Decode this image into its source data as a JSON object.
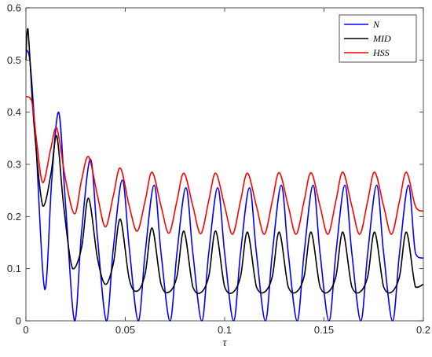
{
  "chart_data": {
    "type": "line",
    "title": "",
    "xlabel": "τ",
    "ylabel": "",
    "xlim": [
      0,
      0.2
    ],
    "ylim": [
      0,
      0.6
    ],
    "xticks": [
      0,
      0.05,
      0.1,
      0.15,
      0.2
    ],
    "xtick_labels": [
      "0",
      "0.05",
      "0.1",
      "0.15",
      "0.2"
    ],
    "yticks": [
      0,
      0.1,
      0.2,
      0.3,
      0.4,
      0.5,
      0.6
    ],
    "ytick_labels": [
      "0",
      "0.1",
      "0.2",
      "0.3",
      "0.4",
      "0.5",
      "0.6"
    ],
    "grid": false,
    "legend_position": "top-right",
    "series": [
      {
        "name": "N",
        "color": "#0000ff",
        "x": [
          0,
          0.002,
          0.005,
          0.0095,
          0.013,
          0.0165,
          0.02,
          0.0245,
          0.028,
          0.0325,
          0.036,
          0.0405,
          0.044,
          0.0485,
          0.052,
          0.0565,
          0.06,
          0.0645,
          0.068,
          0.0725,
          0.076,
          0.0805,
          0.084,
          0.0885,
          0.092,
          0.0965,
          0.1,
          0.1045,
          0.108,
          0.1125,
          0.116,
          0.1205,
          0.124,
          0.1285,
          0.132,
          0.1365,
          0.14,
          0.1445,
          0.148,
          0.1525,
          0.156,
          0.1605,
          0.164,
          0.1685,
          0.172,
          0.1765,
          0.18,
          0.1845,
          0.188,
          0.1925,
          0.196,
          0.2
        ],
        "y": [
          0.52,
          0.5,
          0.34,
          0.06,
          0.27,
          0.4,
          0.22,
          0.0,
          0.17,
          0.31,
          0.16,
          0.0,
          0.14,
          0.27,
          0.14,
          0.0,
          0.13,
          0.26,
          0.13,
          0.0,
          0.13,
          0.255,
          0.13,
          0.0,
          0.13,
          0.255,
          0.13,
          0.0,
          0.13,
          0.255,
          0.13,
          0.0,
          0.13,
          0.26,
          0.13,
          0.0,
          0.13,
          0.26,
          0.13,
          0.0,
          0.13,
          0.26,
          0.13,
          0.0,
          0.13,
          0.26,
          0.13,
          0.0,
          0.13,
          0.26,
          0.13,
          0.12
        ]
      },
      {
        "name": "MID",
        "color": "#000000",
        "x": [
          0,
          0.001,
          0.004,
          0.0085,
          0.0125,
          0.0155,
          0.019,
          0.0235,
          0.028,
          0.0315,
          0.036,
          0.04,
          0.044,
          0.0475,
          0.052,
          0.056,
          0.06,
          0.0635,
          0.068,
          0.072,
          0.076,
          0.0795,
          0.084,
          0.088,
          0.092,
          0.0955,
          0.1,
          0.104,
          0.108,
          0.1115,
          0.116,
          0.12,
          0.124,
          0.1275,
          0.132,
          0.136,
          0.14,
          0.1435,
          0.148,
          0.152,
          0.156,
          0.1595,
          0.164,
          0.168,
          0.172,
          0.1755,
          0.18,
          0.184,
          0.188,
          0.1915,
          0.196,
          0.2
        ],
        "y": [
          0.5,
          0.56,
          0.38,
          0.22,
          0.28,
          0.355,
          0.22,
          0.1,
          0.14,
          0.235,
          0.12,
          0.07,
          0.11,
          0.195,
          0.08,
          0.057,
          0.09,
          0.178,
          0.07,
          0.055,
          0.085,
          0.172,
          0.065,
          0.054,
          0.085,
          0.172,
          0.065,
          0.054,
          0.085,
          0.17,
          0.065,
          0.055,
          0.085,
          0.17,
          0.065,
          0.055,
          0.085,
          0.17,
          0.065,
          0.055,
          0.085,
          0.17,
          0.065,
          0.055,
          0.085,
          0.17,
          0.065,
          0.055,
          0.085,
          0.17,
          0.065,
          0.07
        ]
      },
      {
        "name": "HSS",
        "color": "#ff0000",
        "x": [
          0,
          0.003,
          0.0055,
          0.0085,
          0.0125,
          0.0155,
          0.02,
          0.0245,
          0.028,
          0.0315,
          0.036,
          0.04,
          0.044,
          0.0475,
          0.052,
          0.056,
          0.06,
          0.0635,
          0.068,
          0.072,
          0.076,
          0.0795,
          0.084,
          0.088,
          0.092,
          0.0955,
          0.1,
          0.104,
          0.108,
          0.1115,
          0.116,
          0.12,
          0.124,
          0.1275,
          0.132,
          0.136,
          0.14,
          0.1435,
          0.148,
          0.152,
          0.156,
          0.1595,
          0.164,
          0.168,
          0.172,
          0.1755,
          0.18,
          0.184,
          0.188,
          0.1915,
          0.196,
          0.2
        ],
        "y": [
          0.43,
          0.42,
          0.34,
          0.265,
          0.33,
          0.37,
          0.27,
          0.205,
          0.27,
          0.315,
          0.24,
          0.18,
          0.24,
          0.293,
          0.22,
          0.172,
          0.23,
          0.285,
          0.22,
          0.168,
          0.23,
          0.283,
          0.22,
          0.167,
          0.23,
          0.283,
          0.22,
          0.166,
          0.23,
          0.283,
          0.22,
          0.166,
          0.23,
          0.284,
          0.22,
          0.166,
          0.23,
          0.284,
          0.22,
          0.166,
          0.23,
          0.285,
          0.22,
          0.166,
          0.23,
          0.285,
          0.22,
          0.166,
          0.23,
          0.285,
          0.22,
          0.21
        ]
      }
    ]
  }
}
